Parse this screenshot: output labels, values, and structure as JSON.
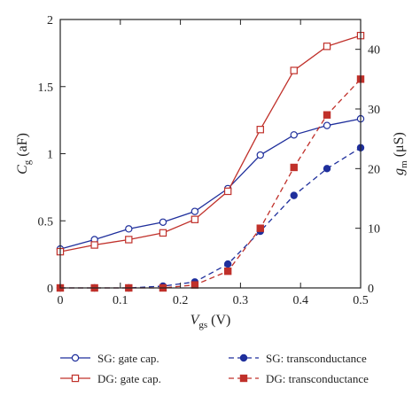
{
  "chart_data": {
    "type": "line",
    "x_axis": {
      "label_main": "V",
      "label_sub": "gs",
      "label_unit": " (V)",
      "range": [
        0,
        0.5
      ],
      "ticks": [
        "0",
        "0.1",
        "0.2",
        "0.3",
        "0.4",
        "0.5"
      ]
    },
    "y_left": {
      "label_main": "C",
      "label_sub": "g",
      "label_unit": " (aF)",
      "range": [
        0,
        2
      ],
      "ticks": [
        "0",
        "0.5",
        "1",
        "1.5",
        "2"
      ]
    },
    "y_right": {
      "label_main": "g",
      "label_sub": "m",
      "label_unit": " (μS)",
      "range": [
        0,
        45
      ],
      "ticks": [
        "0",
        "10",
        "20",
        "30",
        "40"
      ]
    },
    "grid": false,
    "legend_position": "bottom",
    "series": [
      {
        "name": "SG: gate cap.",
        "axis": "left",
        "color": "#1f2f9c",
        "marker": "circle-open",
        "line": "solid",
        "x": [
          0,
          0.057,
          0.114,
          0.171,
          0.224,
          0.279,
          0.333,
          0.389,
          0.444,
          0.5
        ],
        "values": [
          0.29,
          0.36,
          0.44,
          0.49,
          0.57,
          0.74,
          0.99,
          1.14,
          1.21,
          1.26
        ]
      },
      {
        "name": "DG: gate cap.",
        "axis": "left",
        "color": "#c0302a",
        "marker": "square-open",
        "line": "solid",
        "x": [
          0,
          0.057,
          0.114,
          0.171,
          0.224,
          0.279,
          0.333,
          0.389,
          0.444,
          0.5
        ],
        "values": [
          0.27,
          0.32,
          0.36,
          0.41,
          0.51,
          0.72,
          1.18,
          1.62,
          1.8,
          1.88
        ]
      },
      {
        "name": "SG: transconductance",
        "axis": "right",
        "color": "#1f2f9c",
        "marker": "circle-filled",
        "line": "dashed",
        "x": [
          0,
          0.057,
          0.114,
          0.171,
          0.224,
          0.279,
          0.333,
          0.389,
          0.444,
          0.5
        ],
        "values": [
          0,
          0,
          0,
          0.3,
          1.0,
          4.0,
          9.5,
          15.5,
          20.0,
          23.5
        ]
      },
      {
        "name": "DG: transconductance",
        "axis": "right",
        "color": "#c0302a",
        "marker": "square-filled",
        "line": "dashed",
        "x": [
          0,
          0.057,
          0.114,
          0.171,
          0.224,
          0.279,
          0.333,
          0.389,
          0.444,
          0.5
        ],
        "values": [
          0,
          0,
          0,
          0,
          0.5,
          2.8,
          10.0,
          20.2,
          29.0,
          35.0
        ]
      }
    ]
  }
}
